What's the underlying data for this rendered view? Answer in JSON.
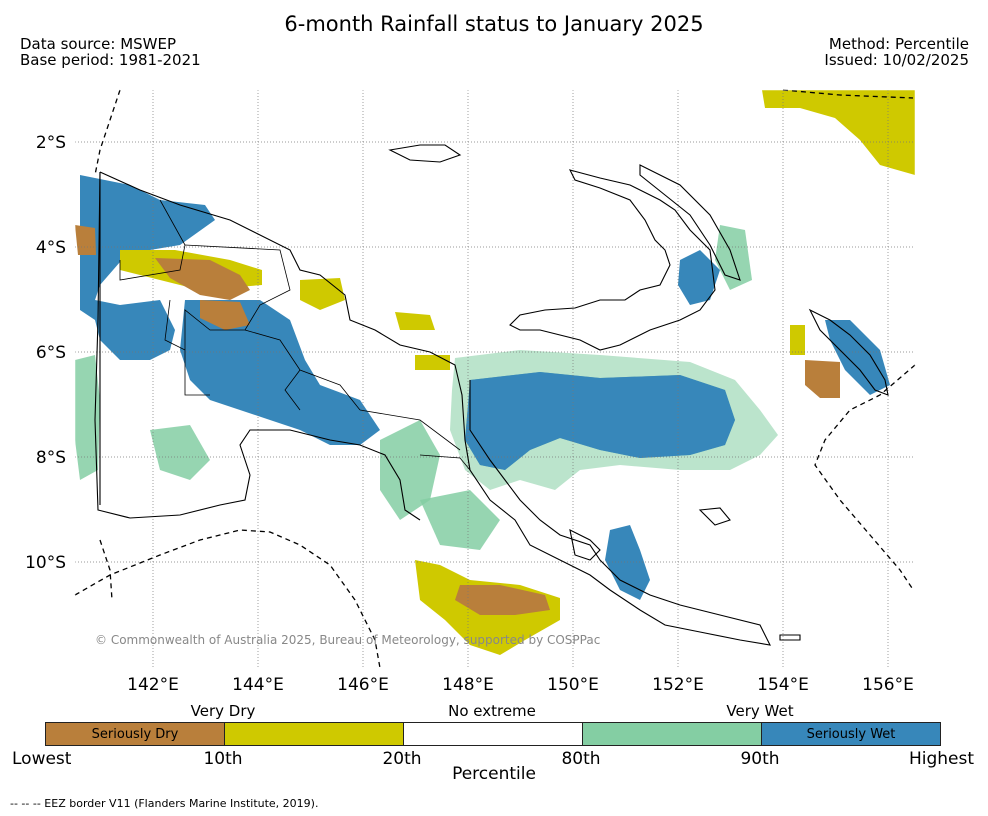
{
  "title": "6-month Rainfall status to January 2025",
  "meta": {
    "data_source": "Data source: MSWEP",
    "base_period": "Base period: 1981-2021",
    "method": "Method: Percentile",
    "issued": "Issued: 10/02/2025"
  },
  "map": {
    "y_ticks": [
      "2°S",
      "4°S",
      "6°S",
      "8°S",
      "10°S"
    ],
    "x_ticks": [
      "142°E",
      "144°E",
      "146°E",
      "148°E",
      "150°E",
      "152°E",
      "154°E",
      "156°E"
    ],
    "copyright": "© Commonwealth of Australia 2025, Bureau of Meteorology, supported by COSPPac"
  },
  "legend": {
    "groups": [
      "Very Dry",
      "No extreme",
      "Very Wet"
    ],
    "categories": [
      {
        "label": "Seriously Dry",
        "color": "#b97f3b"
      },
      {
        "label": "",
        "color": "#cfc900"
      },
      {
        "label": "",
        "color": "#ffffff"
      },
      {
        "label": "",
        "color": "#84cea3"
      },
      {
        "label": "Seriously Wet",
        "color": "#3787ba"
      }
    ],
    "ticks": [
      "Lowest",
      "10th",
      "20th",
      "80th",
      "90th",
      "Highest"
    ],
    "axis_label": "Percentile"
  },
  "footnote": "--  --  -- EEZ border V11 (Flanders Marine Institute, 2019)."
}
